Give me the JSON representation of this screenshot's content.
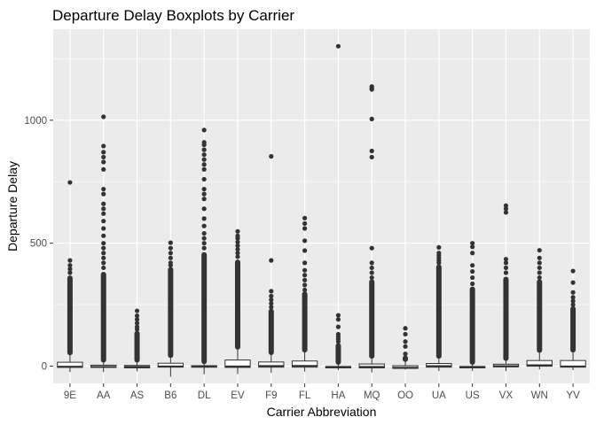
{
  "chart_data": {
    "type": "boxplot",
    "title": "Departure Delay Boxplots by Carrier",
    "xlabel": "Carrier Abbreviation",
    "ylabel": "Departure Delay",
    "categories": [
      "9E",
      "AA",
      "AS",
      "B6",
      "DL",
      "EV",
      "F9",
      "FL",
      "HA",
      "MQ",
      "OO",
      "UA",
      "US",
      "VX",
      "WN",
      "YV"
    ],
    "ylim": [
      -70,
      1370
    ],
    "yticks": [
      0,
      500,
      1000
    ],
    "grid": true,
    "colors": {
      "panel": "#ebebeb",
      "grid_major": "#ffffff",
      "box_fill": "#ffffff",
      "box_line": "#333333",
      "outlier": "#333333"
    },
    "boxes": [
      {
        "name": "9E",
        "q1": -5,
        "median": -2,
        "q3": 16,
        "lower": -24,
        "upper": 47,
        "outlier_band": [
          48,
          365
        ],
        "outliers": [
          380,
          395,
          410,
          430,
          747
        ]
      },
      {
        "name": "AA",
        "q1": -5,
        "median": -3,
        "q3": 4,
        "lower": -24,
        "upper": 17,
        "outlier_band": [
          18,
          380
        ],
        "outliers": [
          400,
          420,
          440,
          460,
          480,
          500,
          530,
          560,
          590,
          620,
          640,
          660,
          700,
          720,
          800,
          830,
          850,
          870,
          895,
          1014
        ]
      },
      {
        "name": "AS",
        "q1": -7,
        "median": -3,
        "q3": 3,
        "lower": -21,
        "upper": 17,
        "outlier_band": [
          18,
          140
        ],
        "outliers": [
          150,
          160,
          175,
          190,
          205,
          225
        ]
      },
      {
        "name": "B6",
        "q1": -4,
        "median": -1,
        "q3": 12,
        "lower": -43,
        "upper": 36,
        "outlier_band": [
          37,
          400
        ],
        "outliers": [
          410,
          420,
          440,
          460,
          480,
          502
        ]
      },
      {
        "name": "DL",
        "q1": -4,
        "median": -2,
        "q3": 2,
        "lower": -33,
        "upper": 11,
        "outlier_band": [
          12,
          460
        ],
        "outliers": [
          480,
          500,
          520,
          540,
          570,
          600,
          640,
          680,
          700,
          720,
          760,
          800,
          820,
          840,
          860,
          880,
          900,
          910,
          960
        ]
      },
      {
        "name": "EV",
        "q1": -5,
        "median": -1,
        "q3": 25,
        "lower": -32,
        "upper": 70,
        "outlier_band": [
          71,
          430
        ],
        "outliers": [
          445,
          460,
          475,
          490,
          505,
          520,
          530,
          548
        ]
      },
      {
        "name": "F9",
        "q1": -4,
        "median": 0.5,
        "q3": 17,
        "lower": -27,
        "upper": 48,
        "outlier_band": [
          49,
          230
        ],
        "outliers": [
          240,
          255,
          270,
          285,
          305,
          430,
          853
        ]
      },
      {
        "name": "FL",
        "q1": -4,
        "median": 1,
        "q3": 21,
        "lower": -22,
        "upper": 58,
        "outlier_band": [
          59,
          300
        ],
        "outliers": [
          310,
          330,
          350,
          370,
          390,
          420,
          470,
          510,
          560,
          580,
          602
        ]
      },
      {
        "name": "HA",
        "q1": -7,
        "median": -4,
        "q3": -1,
        "lower": -16,
        "upper": 8,
        "outlier_band": [
          9,
          90
        ],
        "outliers": [
          100,
          110,
          120,
          130,
          160,
          190,
          207,
          1301
        ]
      },
      {
        "name": "MQ",
        "q1": -7,
        "median": -3,
        "q3": 9,
        "lower": -26,
        "upper": 33,
        "outlier_band": [
          34,
          350
        ],
        "outliers": [
          360,
          380,
          400,
          420,
          480,
          850,
          875,
          1005,
          1125,
          1130,
          1137
        ]
      },
      {
        "name": "OO",
        "q1": -9,
        "median": -6,
        "q3": 2,
        "lower": -14,
        "upper": 20,
        "outlier_band": [
          21,
          40
        ],
        "outliers": [
          50,
          80,
          100,
          130,
          154
        ]
      },
      {
        "name": "UA",
        "q1": -4,
        "median": 0,
        "q3": 11,
        "lower": -20,
        "upper": 33,
        "outlier_band": [
          34,
          410
        ],
        "outliers": [
          420,
          430,
          440,
          450,
          460,
          483
        ]
      },
      {
        "name": "US",
        "q1": -7,
        "median": -4,
        "q3": -1,
        "lower": -19,
        "upper": 8,
        "outlier_band": [
          9,
          320
        ],
        "outliers": [
          335,
          360,
          385,
          410,
          460,
          485,
          500
        ]
      },
      {
        "name": "VX",
        "q1": -3,
        "median": 0,
        "q3": 8,
        "lower": -20,
        "upper": 24,
        "outlier_band": [
          25,
          360
        ],
        "outliers": [
          380,
          400,
          420,
          435,
          625,
          640,
          653
        ]
      },
      {
        "name": "WN",
        "q1": 0,
        "median": 4,
        "q3": 23,
        "lower": -13,
        "upper": 57,
        "outlier_band": [
          58,
          350
        ],
        "outliers": [
          360,
          380,
          400,
          420,
          440,
          471
        ]
      },
      {
        "name": "YV",
        "q1": -4,
        "median": -1,
        "q3": 23,
        "lower": -16,
        "upper": 58,
        "outlier_band": [
          59,
          240
        ],
        "outliers": [
          250,
          265,
          280,
          300,
          340,
          387
        ]
      }
    ]
  }
}
